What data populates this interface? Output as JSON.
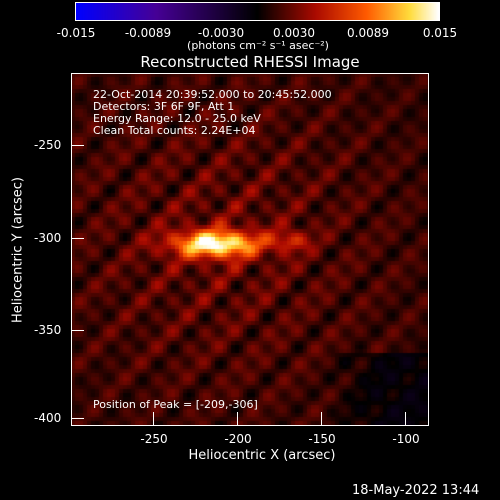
{
  "colorbar": {
    "ticks": [
      "-0.015",
      "-0.0089",
      "-0.0030",
      "0.0030",
      "0.0089",
      "0.015"
    ],
    "units": "(photons cm⁻² s⁻¹ asec⁻²)"
  },
  "title": "Reconstructed RHESSI Image",
  "info": {
    "line1": "22-Oct-2014 20:39:52.000 to 20:45:52.000",
    "line2": "Detectors: 3F 6F 9F, Att 1",
    "line3": "Energy Range: 12.0 - 25.0 keV",
    "line4": "Clean    Total counts: 2.24E+04",
    "peak": "Position of Peak = [-209,-306]"
  },
  "axes": {
    "xlabel": "Heliocentric X (arcsec)",
    "ylabel": "Heliocentric Y (arcsec)",
    "xticks": [
      "-250",
      "-200",
      "-150",
      "-100"
    ],
    "yticks": [
      "-250",
      "-300",
      "-350",
      "-400"
    ]
  },
  "timestamp": "18-May-2022 13:44",
  "colors": {
    "background": "#000000",
    "text": "#ffffff"
  }
}
